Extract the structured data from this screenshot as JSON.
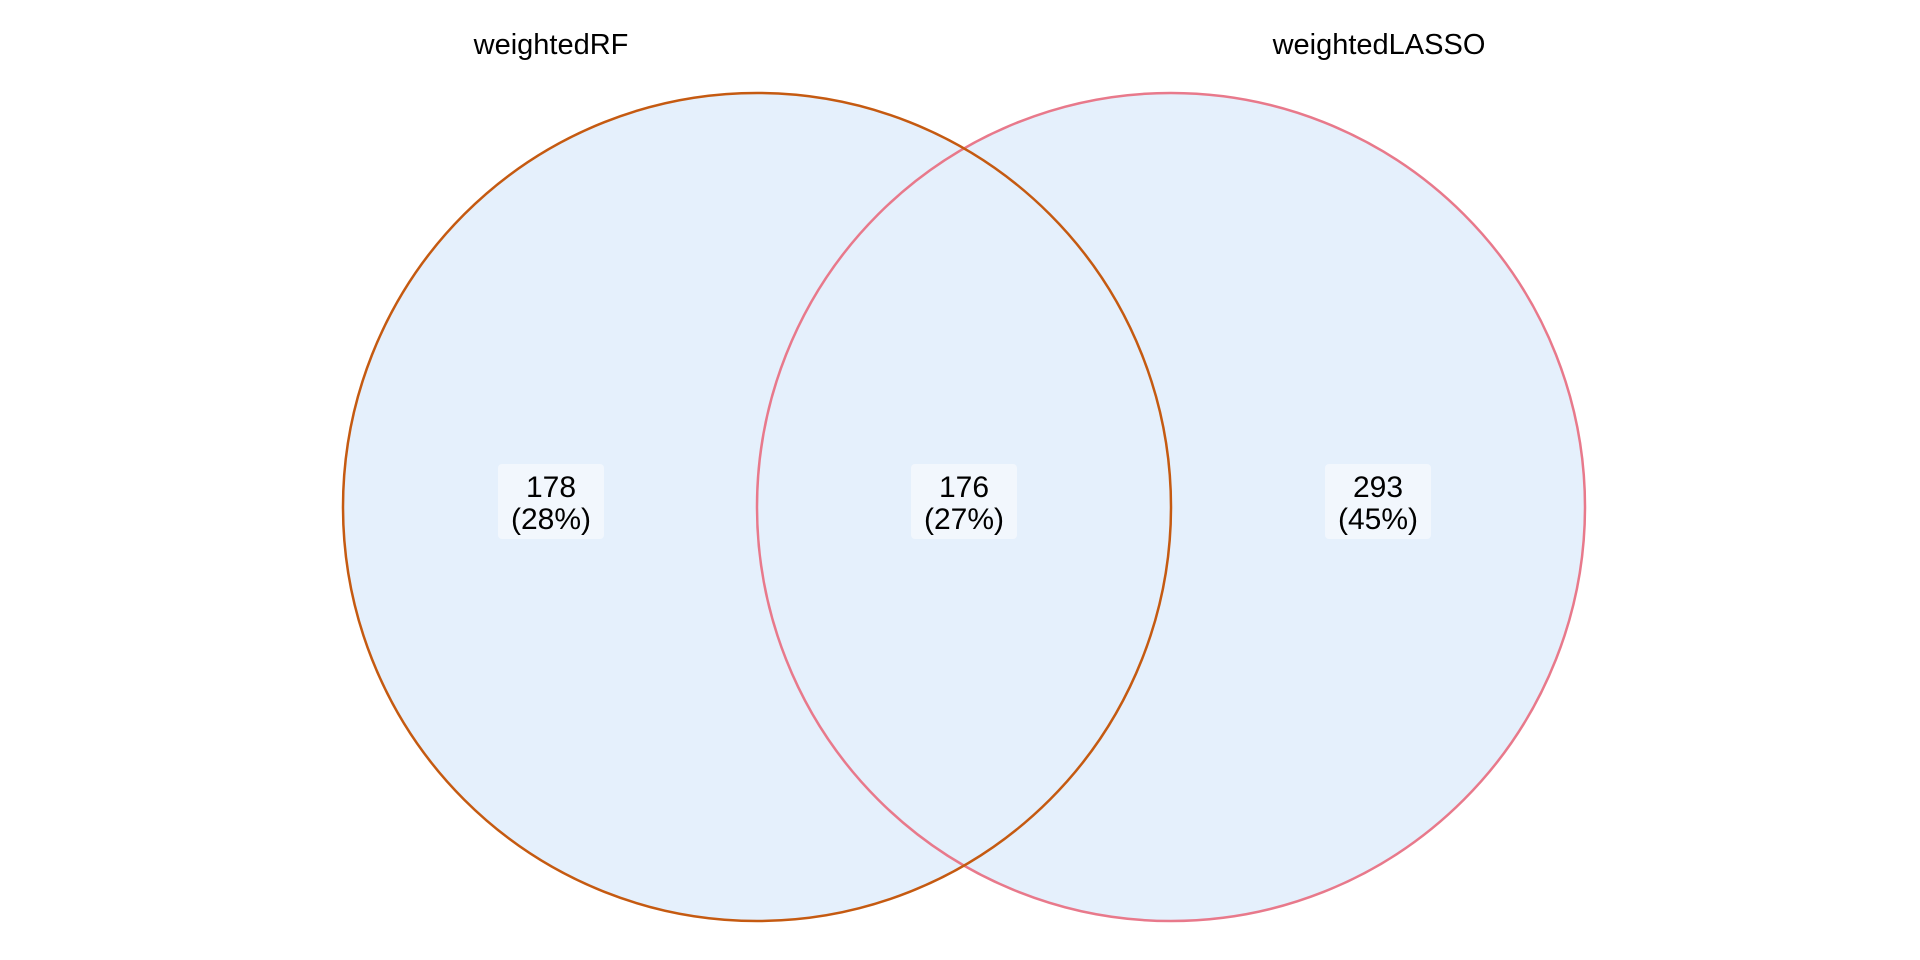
{
  "venn": {
    "sets": [
      {
        "name": "weightedRF",
        "stroke_color": "#c55a11"
      },
      {
        "name": "weightedLASSO",
        "stroke_color": "#e8798b"
      }
    ],
    "fill_color": "#e5f0fc",
    "label_bg_color": "#f2f7fd",
    "regions": [
      {
        "sets": [
          "weightedRF"
        ],
        "count": "178",
        "percent": "(28%)"
      },
      {
        "sets": [
          "weightedRF",
          "weightedLASSO"
        ],
        "count": "176",
        "percent": "(27%)"
      },
      {
        "sets": [
          "weightedLASSO"
        ],
        "count": "293",
        "percent": "(45%)"
      }
    ]
  }
}
